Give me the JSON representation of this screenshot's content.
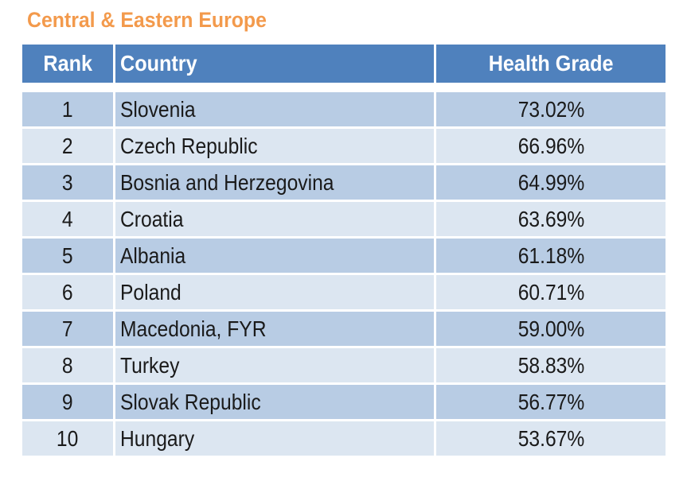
{
  "title": "Central & Eastern Europe",
  "table": {
    "headers": {
      "rank": "Rank",
      "country": "Country",
      "grade": "Health Grade"
    },
    "rows": [
      {
        "rank": "1",
        "country": "Slovenia",
        "grade": "73.02%"
      },
      {
        "rank": "2",
        "country": "Czech Republic",
        "grade": "66.96%"
      },
      {
        "rank": "3",
        "country": "Bosnia and Herzegovina",
        "grade": "64.99%"
      },
      {
        "rank": "4",
        "country": "Croatia",
        "grade": "63.69%"
      },
      {
        "rank": "5",
        "country": "Albania",
        "grade": "61.18%"
      },
      {
        "rank": "6",
        "country": "Poland",
        "grade": "60.71%"
      },
      {
        "rank": "7",
        "country": "Macedonia, FYR",
        "grade": "59.00%"
      },
      {
        "rank": "8",
        "country": "Turkey",
        "grade": "58.83%"
      },
      {
        "rank": "9",
        "country": "Slovak Republic",
        "grade": "56.77%"
      },
      {
        "rank": "10",
        "country": "Hungary",
        "grade": "53.67%"
      }
    ]
  },
  "colors": {
    "title": "#f39a4c",
    "header_bg": "#4f81bd",
    "row_dark": "#b8cce4",
    "row_light": "#dce6f1"
  }
}
